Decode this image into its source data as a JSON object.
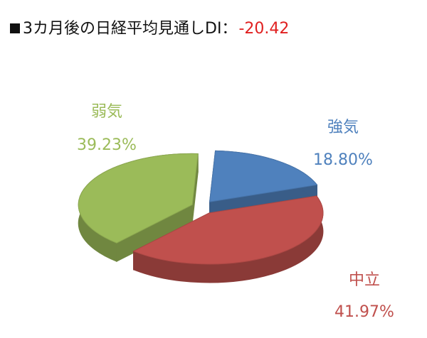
{
  "chart_data": {
    "type": "pie",
    "title": "3カ月後の日経平均見通しDI：",
    "di_value": -20.42,
    "categories": [
      "強気",
      "中立",
      "弱気"
    ],
    "values": [
      18.8,
      41.97,
      39.23
    ],
    "value_labels": [
      "18.80%",
      "41.97%",
      "39.23%"
    ],
    "colors": [
      "#4f81bd",
      "#c0504d",
      "#9bbb59"
    ]
  }
}
